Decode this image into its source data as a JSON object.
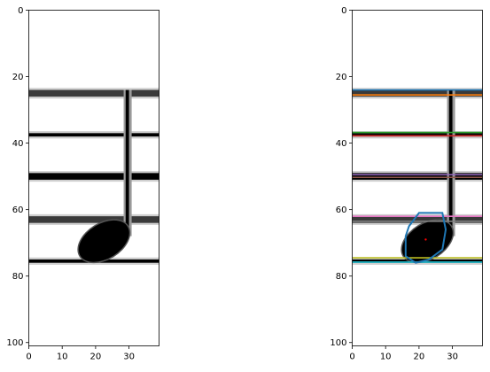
{
  "chart_data": [
    {
      "type": "image",
      "panel": "left",
      "xlim": [
        0,
        39
      ],
      "ylim": [
        101,
        0
      ],
      "x_ticks": [
        0,
        10,
        20,
        30
      ],
      "y_ticks": [
        0,
        20,
        40,
        60,
        80,
        100
      ],
      "staff_lines": [
        {
          "y": [
            24,
            26
          ],
          "color": "#3a3a3a"
        },
        {
          "y": [
            37,
            38
          ],
          "color": "#000000"
        },
        {
          "y": [
            49,
            51
          ],
          "color": "#000000"
        },
        {
          "y": [
            62,
            64
          ],
          "color": "#3a3a3a"
        },
        {
          "y": [
            75,
            76
          ],
          "color": "#000000"
        }
      ],
      "stem": {
        "x": [
          29,
          30
        ],
        "y": [
          24,
          68
        ]
      },
      "note_head": {
        "cx": 22.5,
        "cy": 69.5,
        "rx": 8.3,
        "ry": 5.2,
        "angle": -32
      }
    },
    {
      "type": "image",
      "panel": "right",
      "xlim": [
        0,
        39
      ],
      "ylim": [
        101,
        0
      ],
      "x_ticks": [
        0,
        10,
        20,
        30
      ],
      "y_ticks": [
        0,
        20,
        40,
        60,
        80,
        100
      ],
      "staff_lines": [
        {
          "y": [
            24,
            26
          ],
          "color": "#3a3a3a"
        },
        {
          "y": [
            37,
            38
          ],
          "color": "#000000"
        },
        {
          "y": [
            49,
            51
          ],
          "color": "#000000"
        },
        {
          "y": [
            62,
            64
          ],
          "color": "#3a3a3a"
        },
        {
          "y": [
            75,
            76
          ],
          "color": "#000000"
        }
      ],
      "stem": {
        "x": [
          29,
          30
        ],
        "y": [
          24,
          68
        ]
      },
      "note_head": {
        "cx": 22.5,
        "cy": 69.5,
        "rx": 8.3,
        "ry": 5.2,
        "angle": -32
      },
      "overlay_lines": [
        {
          "y": 24,
          "color": "#1f77b4"
        },
        {
          "y": 25.5,
          "color": "#ff7f0e"
        },
        {
          "y": 36.8,
          "color": "#2ca02c"
        },
        {
          "y": 37.8,
          "color": "#d62728"
        },
        {
          "y": 49.5,
          "color": "#9467bd"
        },
        {
          "y": 50.3,
          "color": "#8c564b"
        },
        {
          "y": 62,
          "color": "#e377c2"
        },
        {
          "y": 63.5,
          "color": "#7f7f7f"
        },
        {
          "y": 74.5,
          "color": "#bcbd22"
        },
        {
          "y": 75.8,
          "color": "#17becf"
        }
      ],
      "contour": {
        "color": "#1f77b4",
        "points": [
          [
            17,
            65
          ],
          [
            20,
            61
          ],
          [
            27,
            61
          ],
          [
            28,
            66
          ],
          [
            27,
            72
          ],
          [
            23,
            75
          ],
          [
            19,
            76
          ],
          [
            16,
            74
          ],
          [
            16,
            68
          ]
        ]
      },
      "centroid": {
        "x": 22,
        "y": 69,
        "color": "#ff0000"
      }
    }
  ]
}
